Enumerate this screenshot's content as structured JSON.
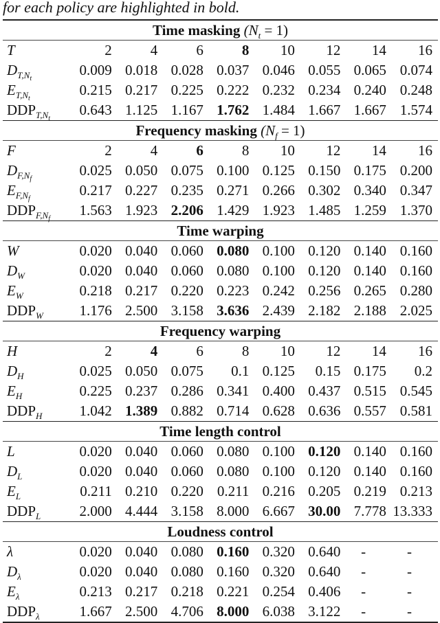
{
  "caption": "for each policy are highlighted in bold.",
  "sections": [
    {
      "title": "Time masking",
      "title_param": "(N",
      "title_sub": "t",
      "title_tail": " = 1)",
      "rows": [
        {
          "sym": "T",
          "sub": "",
          "prefix": "",
          "values": [
            "2",
            "4",
            "6",
            "8",
            "10",
            "12",
            "14",
            "16"
          ],
          "bold": 3
        },
        {
          "sym": "D",
          "sub": "T,Nt",
          "prefix": "",
          "values": [
            "0.009",
            "0.018",
            "0.028",
            "0.037",
            "0.046",
            "0.055",
            "0.065",
            "0.074"
          ],
          "bold": -1
        },
        {
          "sym": "E",
          "sub": "T,Nt",
          "prefix": "",
          "values": [
            "0.215",
            "0.217",
            "0.225",
            "0.222",
            "0.232",
            "0.234",
            "0.240",
            "0.248"
          ],
          "bold": -1
        },
        {
          "sym": "",
          "sub": "T,Nt",
          "prefix": "DDP",
          "values": [
            "0.643",
            "1.125",
            "1.167",
            "1.762",
            "1.484",
            "1.667",
            "1.667",
            "1.574"
          ],
          "bold": 3
        }
      ]
    },
    {
      "title": "Frequency masking",
      "title_param": "(N",
      "title_sub": "f",
      "title_tail": " = 1)",
      "rows": [
        {
          "sym": "F",
          "sub": "",
          "prefix": "",
          "values": [
            "2",
            "4",
            "6",
            "8",
            "10",
            "12",
            "14",
            "16"
          ],
          "bold": 2
        },
        {
          "sym": "D",
          "sub": "F,Nf",
          "prefix": "",
          "values": [
            "0.025",
            "0.050",
            "0.075",
            "0.100",
            "0.125",
            "0.150",
            "0.175",
            "0.200"
          ],
          "bold": -1
        },
        {
          "sym": "E",
          "sub": "F,Nf",
          "prefix": "",
          "values": [
            "0.217",
            "0.227",
            "0.235",
            "0.271",
            "0.266",
            "0.302",
            "0.340",
            "0.347"
          ],
          "bold": -1
        },
        {
          "sym": "",
          "sub": "F,Nf",
          "prefix": "DDP",
          "values": [
            "1.563",
            "1.923",
            "2.206",
            "1.429",
            "1.923",
            "1.485",
            "1.259",
            "1.370"
          ],
          "bold": 2
        }
      ]
    },
    {
      "title": "Time warping",
      "title_param": "",
      "title_sub": "",
      "title_tail": "",
      "rows": [
        {
          "sym": "W",
          "sub": "",
          "prefix": "",
          "values": [
            "0.020",
            "0.040",
            "0.060",
            "0.080",
            "0.100",
            "0.120",
            "0.140",
            "0.160"
          ],
          "bold": 3
        },
        {
          "sym": "D",
          "sub": "W",
          "prefix": "",
          "values": [
            "0.020",
            "0.040",
            "0.060",
            "0.080",
            "0.100",
            "0.120",
            "0.140",
            "0.160"
          ],
          "bold": -1
        },
        {
          "sym": "E",
          "sub": "W",
          "prefix": "",
          "values": [
            "0.218",
            "0.217",
            "0.220",
            "0.223",
            "0.242",
            "0.256",
            "0.265",
            "0.280"
          ],
          "bold": -1
        },
        {
          "sym": "",
          "sub": "W",
          "prefix": "DDP",
          "values": [
            "1.176",
            "2.500",
            "3.158",
            "3.636",
            "2.439",
            "2.182",
            "2.188",
            "2.025"
          ],
          "bold": 3
        }
      ]
    },
    {
      "title": "Frequency warping",
      "title_param": "",
      "title_sub": "",
      "title_tail": "",
      "rows": [
        {
          "sym": "H",
          "sub": "",
          "prefix": "",
          "values": [
            "2",
            "4",
            "6",
            "8",
            "10",
            "12",
            "14",
            "16"
          ],
          "bold": 1
        },
        {
          "sym": "D",
          "sub": "H",
          "prefix": "",
          "values": [
            "0.025",
            "0.050",
            "0.075",
            "0.1",
            "0.125",
            "0.15",
            "0.175",
            "0.2"
          ],
          "bold": -1
        },
        {
          "sym": "E",
          "sub": "H",
          "prefix": "",
          "values": [
            "0.225",
            "0.237",
            "0.286",
            "0.341",
            "0.400",
            "0.437",
            "0.515",
            "0.545"
          ],
          "bold": -1
        },
        {
          "sym": "",
          "sub": "H",
          "prefix": "DDP",
          "values": [
            "1.042",
            "1.389",
            "0.882",
            "0.714",
            "0.628",
            "0.636",
            "0.557",
            "0.581"
          ],
          "bold": 1
        }
      ]
    },
    {
      "title": "Time length control",
      "title_param": "",
      "title_sub": "",
      "title_tail": "",
      "rows": [
        {
          "sym": "L",
          "sub": "",
          "prefix": "",
          "values": [
            "0.020",
            "0.040",
            "0.060",
            "0.080",
            "0.100",
            "0.120",
            "0.140",
            "0.160"
          ],
          "bold": 5
        },
        {
          "sym": "D",
          "sub": "L",
          "prefix": "",
          "values": [
            "0.020",
            "0.040",
            "0.060",
            "0.080",
            "0.100",
            "0.120",
            "0.140",
            "0.160"
          ],
          "bold": -1
        },
        {
          "sym": "E",
          "sub": "L",
          "prefix": "",
          "values": [
            "0.211",
            "0.210",
            "0.220",
            "0.211",
            "0.216",
            "0.205",
            "0.219",
            "0.213"
          ],
          "bold": -1
        },
        {
          "sym": "",
          "sub": "L",
          "prefix": "DDP",
          "values": [
            "2.000",
            "4.444",
            "3.158",
            "8.000",
            "6.667",
            "30.00",
            "7.778",
            "13.333"
          ],
          "bold": 5
        }
      ]
    },
    {
      "title": "Loudness control",
      "title_param": "",
      "title_sub": "",
      "title_tail": "",
      "rows": [
        {
          "sym": "λ",
          "sub": "",
          "prefix": "",
          "values": [
            "0.020",
            "0.040",
            "0.080",
            "0.160",
            "0.320",
            "0.640",
            "-",
            "-"
          ],
          "bold": 3
        },
        {
          "sym": "D",
          "sub": "λ",
          "prefix": "",
          "values": [
            "0.020",
            "0.040",
            "0.080",
            "0.160",
            "0.320",
            "0.640",
            "-",
            "-"
          ],
          "bold": -1
        },
        {
          "sym": "E",
          "sub": "λ",
          "prefix": "",
          "values": [
            "0.213",
            "0.217",
            "0.218",
            "0.221",
            "0.254",
            "0.406",
            "-",
            "-"
          ],
          "bold": -1
        },
        {
          "sym": "",
          "sub": "λ",
          "prefix": "DDP",
          "values": [
            "1.667",
            "2.500",
            "4.706",
            "8.000",
            "6.038",
            "3.122",
            "-",
            "-"
          ],
          "bold": 3
        }
      ]
    }
  ]
}
